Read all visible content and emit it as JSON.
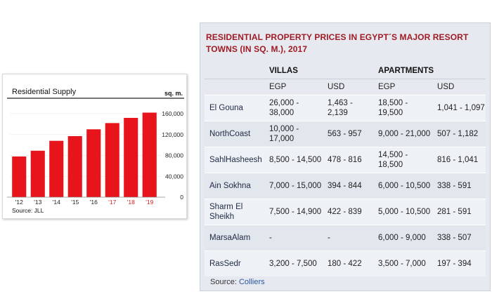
{
  "chart_data": [
    {
      "type": "bar",
      "title": "Residential Supply",
      "unit_label": "sq. m.",
      "categories": [
        "'12",
        "'13",
        "'14",
        "'15",
        "'16",
        "'17",
        "'18",
        "'19"
      ],
      "highlighted_categories": [
        "'17",
        "'18",
        "'19"
      ],
      "values": [
        78000,
        89000,
        108000,
        117000,
        130000,
        142000,
        152000,
        162000
      ],
      "ylim": [
        0,
        160000
      ],
      "yticks": [
        "0",
        "40,000",
        "80,000",
        "120,000",
        "160,000"
      ],
      "ytick_values": [
        0,
        40000,
        80000,
        120000,
        160000
      ],
      "axis_side": "right",
      "source": "Source: JLL",
      "colors": {
        "bar": "#e8141c",
        "highlight_tick": "#d11f25",
        "tick": "#222222",
        "grid": "#eeeeee"
      }
    },
    {
      "type": "table",
      "title": "RESIDENTIAL PROPERTY PRICES IN EGYPT´S MAJOR RESORT TOWNS (IN SQ. M.), 2017",
      "group_headers": [
        "VILLAS",
        "APARTMENTS"
      ],
      "sub_headers": [
        "EGP",
        "USD",
        "EGP",
        "USD"
      ],
      "rows": [
        {
          "town": "El Gouna",
          "villa_egp": "26,000 - 38,000",
          "villa_usd": "1,463 - 2,139",
          "apt_egp": "18,500 - 19,500",
          "apt_usd": "1,041 - 1,097"
        },
        {
          "town": "NorthCoast",
          "villa_egp": "10,000 - 17,000",
          "villa_usd": "563 - 957",
          "apt_egp": "9,000 - 21,000",
          "apt_usd": "507 - 1,182"
        },
        {
          "town": "SahlHasheesh",
          "villa_egp": "8,500 - 14,500",
          "villa_usd": "478 - 816",
          "apt_egp": "14,500 - 18,500",
          "apt_usd": "816 - 1,041"
        },
        {
          "town": "Ain Sokhna",
          "villa_egp": "7,000 - 15,000",
          "villa_usd": "394 - 844",
          "apt_egp": "6,000 - 10,500",
          "apt_usd": "338 - 591"
        },
        {
          "town": "Sharm El Sheikh",
          "villa_egp": "7,500 - 14,900",
          "villa_usd": "422 - 839",
          "apt_egp": "5,000 - 10,500",
          "apt_usd": "281 - 591"
        },
        {
          "town": "MarsaAlam",
          "villa_egp": "-",
          "villa_usd": "-",
          "apt_egp": "6,000 - 9,000",
          "apt_usd": "338 - 507"
        },
        {
          "town": "RasSedr",
          "villa_egp": "3,200 - 7,500",
          "villa_usd": "180 - 422",
          "apt_egp": "3,500 - 7,000",
          "apt_usd": "197 - 394"
        }
      ],
      "source_prefix": "Source:",
      "source_name": "Colliers",
      "colors": {
        "title": "#a01b24",
        "link": "#2b57a0",
        "panel": "#e6e9ef"
      }
    }
  ]
}
